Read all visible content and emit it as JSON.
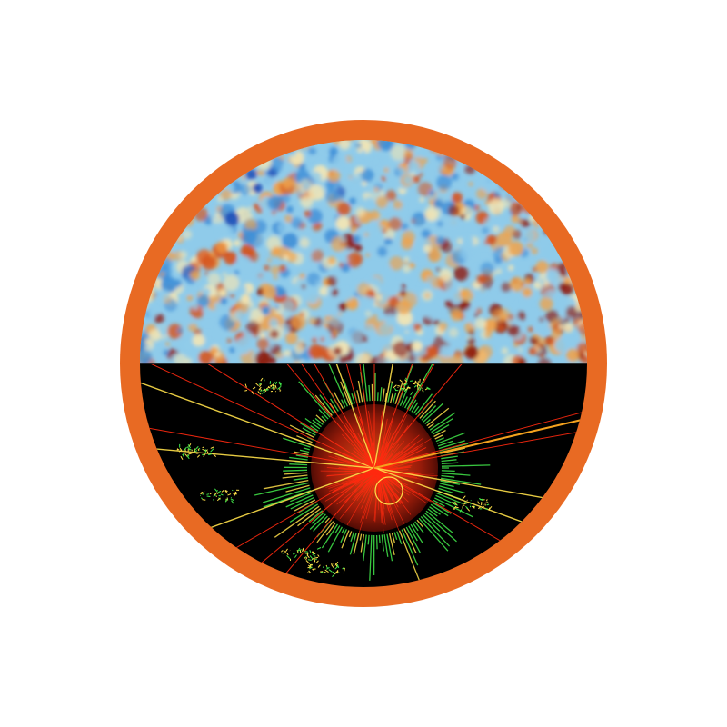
{
  "emblem": {
    "ring_color": "#E86A23",
    "background_color": "#FFFFFF",
    "top_half": {
      "subject": "cmb-temperature-map",
      "palette": [
        "#1E4FB8",
        "#3F8FD8",
        "#8FCBEA",
        "#F2E6B5",
        "#F0A24A",
        "#D6541C",
        "#8E1A0E"
      ]
    },
    "bottom_half": {
      "subject": "particle-collision-event-display",
      "background": "#000000",
      "track_colors": [
        "#FF2A10",
        "#FFE04A",
        "#42E84A",
        "#F4A21E"
      ]
    }
  }
}
